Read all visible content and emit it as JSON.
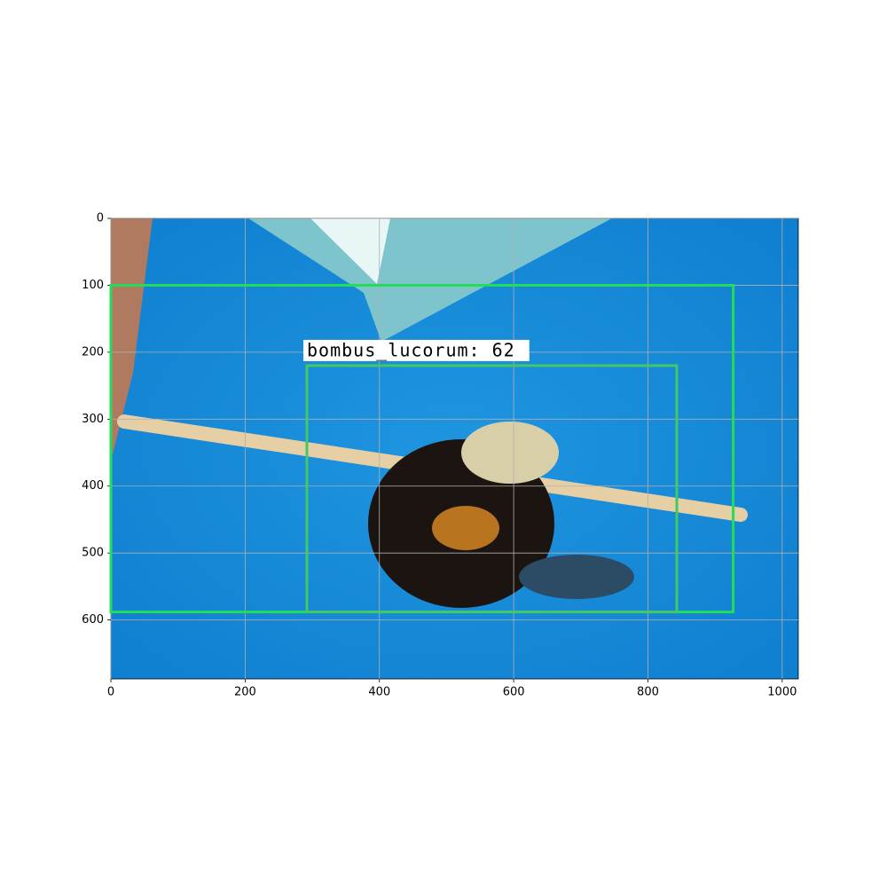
{
  "chart_data": {
    "type": "image",
    "xlim": [
      0,
      1024
    ],
    "ylim": [
      688,
      0
    ],
    "xticks": [
      0,
      200,
      400,
      600,
      800,
      1000
    ],
    "yticks": [
      0,
      100,
      200,
      300,
      400,
      500,
      600
    ],
    "grid": true,
    "boxes": [
      {
        "x": [
          0,
          927
        ],
        "y": [
          100,
          588
        ],
        "color": "#22dd55"
      },
      {
        "x": [
          292,
          843
        ],
        "y": [
          220,
          588
        ],
        "color": "#44c866",
        "label": "bombus_lucorum: 62"
      }
    ]
  }
}
